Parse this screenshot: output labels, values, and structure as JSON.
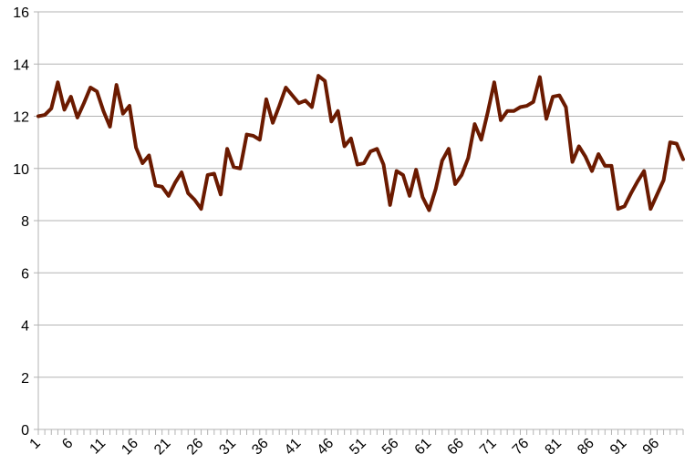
{
  "chart_data": {
    "type": "line",
    "title": "",
    "xlabel": "",
    "ylabel": "",
    "ylim": [
      0,
      16
    ],
    "y_ticks": [
      "0",
      "2",
      "4",
      "6",
      "8",
      "10",
      "12",
      "14",
      "16"
    ],
    "x_tick_labels": [
      "1",
      "6",
      "11",
      "16",
      "21",
      "26",
      "31",
      "36",
      "41",
      "46",
      "51",
      "56",
      "61",
      "66",
      "71",
      "76",
      "81",
      "86",
      "91",
      "96"
    ],
    "grid": true,
    "legend": "none",
    "x": [
      1,
      2,
      3,
      4,
      5,
      6,
      7,
      8,
      9,
      10,
      11,
      12,
      13,
      14,
      15,
      16,
      17,
      18,
      19,
      20,
      21,
      22,
      23,
      24,
      25,
      26,
      27,
      28,
      29,
      30,
      31,
      32,
      33,
      34,
      35,
      36,
      37,
      38,
      39,
      40,
      41,
      42,
      43,
      44,
      45,
      46,
      47,
      48,
      49,
      50,
      51,
      52,
      53,
      54,
      55,
      56,
      57,
      58,
      59,
      60,
      61,
      62,
      63,
      64,
      65,
      66,
      67,
      68,
      69,
      70,
      71,
      72,
      73,
      74,
      75,
      76,
      77,
      78,
      79,
      80,
      81,
      82,
      83,
      84,
      85,
      86,
      87,
      88,
      89,
      90,
      91,
      92,
      93,
      94,
      95,
      96,
      97,
      98,
      99,
      100
    ],
    "series": [
      {
        "color": "#6b1a00",
        "values": [
          12.0,
          12.05,
          12.3,
          13.3,
          12.25,
          12.75,
          11.95,
          12.5,
          13.1,
          12.95,
          12.2,
          11.6,
          13.2,
          12.1,
          12.4,
          10.8,
          10.2,
          10.5,
          9.35,
          9.3,
          8.95,
          9.45,
          9.85,
          9.05,
          8.8,
          8.45,
          9.75,
          9.8,
          9.0,
          10.75,
          10.05,
          10.0,
          11.3,
          11.25,
          11.1,
          12.65,
          11.75,
          12.4,
          13.1,
          12.8,
          12.5,
          12.6,
          12.35,
          13.55,
          13.35,
          11.8,
          12.2,
          10.85,
          11.15,
          10.15,
          10.2,
          10.65,
          10.75,
          10.15,
          8.6,
          9.9,
          9.75,
          8.95,
          9.95,
          8.9,
          8.4,
          9.2,
          10.3,
          10.75,
          9.4,
          9.75,
          10.4,
          11.7,
          11.1,
          12.15,
          13.3,
          11.85,
          12.2,
          12.2,
          12.35,
          12.4,
          12.55,
          13.5,
          11.9,
          12.75,
          12.8,
          12.35,
          10.25,
          10.85,
          10.45,
          9.9,
          10.55,
          10.1,
          10.1,
          8.45,
          8.55,
          9.05,
          9.5,
          9.9,
          8.45,
          9.0,
          9.55,
          11.0,
          10.95,
          10.35
        ]
      }
    ]
  }
}
